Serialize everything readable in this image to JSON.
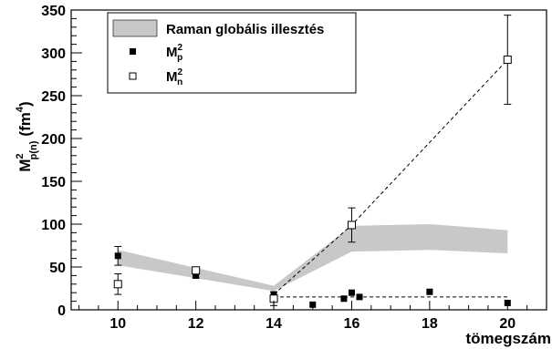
{
  "chart_data": {
    "type": "scatter",
    "xlabel": "tömegszám",
    "ylabel": {
      "base": "M",
      "sup": "2",
      "sub": "p(n)",
      "unit_prefix": "(fm",
      "unit_sup": "4",
      "unit_suffix": ")"
    },
    "xlim": [
      8.8,
      21.0
    ],
    "ylim": [
      0,
      350
    ],
    "x_ticks": [
      10,
      12,
      14,
      16,
      18,
      20
    ],
    "y_ticks": [
      0,
      50,
      100,
      150,
      200,
      250,
      300,
      350
    ],
    "grid": false,
    "legend_position": "top-left",
    "band": {
      "name": "Raman globális illesztés",
      "color": "#c8c8c8",
      "x": [
        10,
        14,
        16,
        18,
        20
      ],
      "lower": [
        52,
        22,
        68,
        70,
        66
      ],
      "upper": [
        70,
        28,
        98,
        100,
        93
      ]
    },
    "series": [
      {
        "name": "M",
        "name_sup": "2",
        "name_sub": "p",
        "marker": "filled-square",
        "points": [
          {
            "x": 10,
            "y": 63,
            "err": 11
          },
          {
            "x": 12,
            "y": 40,
            "err": 3
          },
          {
            "x": 14,
            "y": 18,
            "err": 0
          },
          {
            "x": 15,
            "y": 6,
            "err": 0
          },
          {
            "x": 15.8,
            "y": 13,
            "err": 0
          },
          {
            "x": 16,
            "y": 20,
            "err": 0
          },
          {
            "x": 16.2,
            "y": 15,
            "err": 0
          },
          {
            "x": 18,
            "y": 21,
            "err": 0
          },
          {
            "x": 20,
            "y": 8,
            "err": 0
          }
        ]
      },
      {
        "name": "M",
        "name_sup": "2",
        "name_sub": "n",
        "marker": "open-square",
        "points": [
          {
            "x": 10,
            "y": 30,
            "err": 12
          },
          {
            "x": 12,
            "y": 46,
            "err": 3
          },
          {
            "x": 14,
            "y": 13,
            "err": 8
          },
          {
            "x": 16,
            "y": 99,
            "err": 20
          },
          {
            "x": 20,
            "y": 292,
            "err": 52
          }
        ]
      }
    ],
    "dashed_lines": [
      {
        "x": [
          14,
          20
        ],
        "y": [
          15,
          15
        ]
      },
      {
        "x": [
          14,
          16,
          20
        ],
        "y": [
          18,
          99,
          292
        ]
      }
    ]
  }
}
